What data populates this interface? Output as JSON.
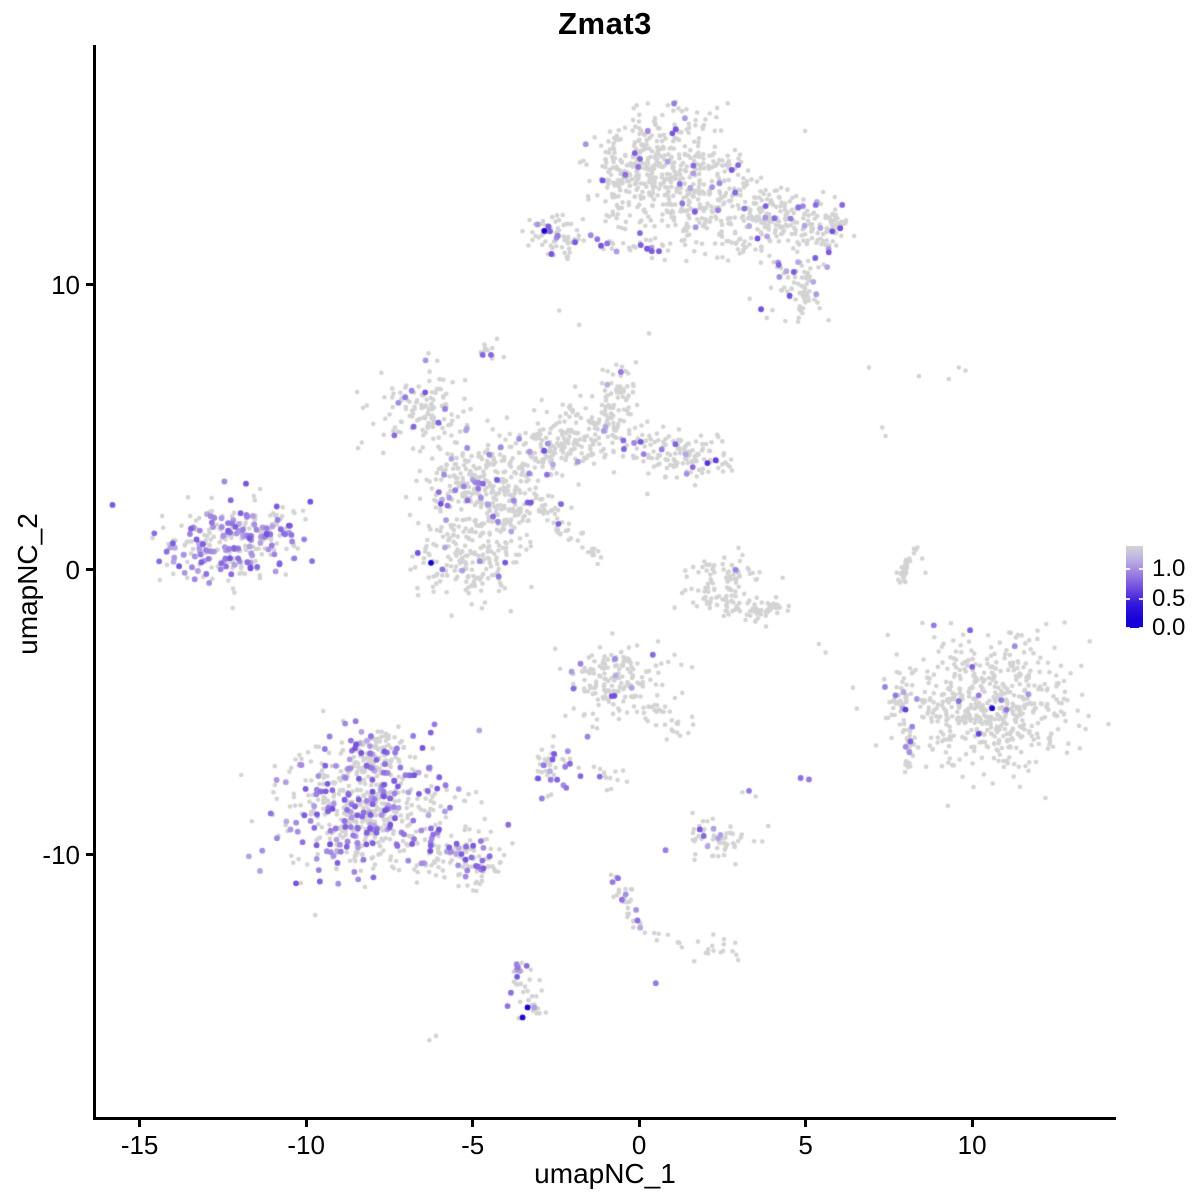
{
  "title": "Zmat3",
  "axes": {
    "x": {
      "label": "umapNC_1",
      "ticks": [
        "-15",
        "-10",
        "-5",
        "0",
        "5",
        "10"
      ],
      "tick_values": [
        -15,
        -10,
        -5,
        0,
        5,
        10
      ]
    },
    "y": {
      "label": "umapNC_2",
      "ticks": [
        "10",
        "0",
        "-10"
      ],
      "tick_values": [
        10,
        0,
        -10
      ]
    }
  },
  "legend": {
    "ticks": [
      "1.0",
      "0.5",
      "0.0"
    ],
    "tick_values": [
      1.0,
      0.5,
      0.0
    ],
    "vmax_display": 1.4
  },
  "colors": {
    "background": "#ffffff",
    "axis": "#000000",
    "ramp": [
      [
        0,
        "#d3d3d3"
      ],
      [
        0.2,
        "#c2b6e2"
      ],
      [
        0.45,
        "#9e83e2"
      ],
      [
        0.7,
        "#7450de"
      ],
      [
        1.0,
        "#3415dc"
      ],
      [
        1.25,
        "#1503d6"
      ]
    ]
  },
  "chart_data": {
    "type": "scatter",
    "title": "Zmat3",
    "xlabel": "umapNC_1",
    "ylabel": "umapNC_2",
    "xlim": [
      -16.34,
      14.29
    ],
    "ylim": [
      -19.23,
      18.42
    ],
    "grid": false,
    "legend_position": "right",
    "seed": 42,
    "point_radius_px": {
      "base": 2.3,
      "expressed": 2.9
    },
    "expressed_value_range": [
      0.25,
      0.7
    ],
    "clusters": [
      {
        "name": "top-main-upper",
        "kind": "blob",
        "cx": 0.7,
        "cy": 14.5,
        "sx": 1.0,
        "sy": 0.85,
        "n": 300,
        "frac": 0.04
      },
      {
        "name": "top-main-lower",
        "kind": "blob",
        "cx": 1.9,
        "cy": 12.7,
        "sx": 1.15,
        "sy": 0.8,
        "n": 260,
        "frac": 0.05
      },
      {
        "name": "top-left-lobe",
        "kind": "blob",
        "cx": -0.4,
        "cy": 13.4,
        "sx": 0.5,
        "sy": 0.9,
        "n": 90,
        "frac": 0.02
      },
      {
        "name": "top-right-wing",
        "kind": "blob",
        "cx": 4.4,
        "cy": 12.1,
        "sx": 0.9,
        "sy": 0.55,
        "n": 150,
        "frac": 0.1
      },
      {
        "name": "top-right-tip",
        "kind": "blob",
        "cx": 5.7,
        "cy": 11.9,
        "sx": 0.35,
        "sy": 0.4,
        "n": 50,
        "frac": 0.14
      },
      {
        "name": "top-hook-down",
        "kind": "blob",
        "cx": 4.7,
        "cy": 10.0,
        "sx": 0.45,
        "sy": 0.75,
        "n": 80,
        "frac": 0.12
      },
      {
        "name": "upper-left-small",
        "kind": "blob",
        "cx": -2.5,
        "cy": 11.7,
        "sx": 0.45,
        "sy": 0.4,
        "n": 65,
        "frac": 0.08
      },
      {
        "name": "tiny-mid-upper",
        "kind": "blob",
        "cx": -4.6,
        "cy": 7.6,
        "sx": 0.2,
        "sy": 0.28,
        "n": 12,
        "frac": 0
      },
      {
        "name": "central-topleft",
        "kind": "blob",
        "cx": -6.6,
        "cy": 5.6,
        "sx": 0.72,
        "sy": 0.68,
        "n": 130,
        "frac": 0.06
      },
      {
        "name": "central-main-knot",
        "kind": "blob",
        "cx": -4.5,
        "cy": 3.3,
        "sx": 1.0,
        "sy": 0.72,
        "n": 280,
        "frac": 0.09
      },
      {
        "name": "central-lower-lobe",
        "kind": "blob",
        "cx": -5.2,
        "cy": 0.5,
        "sx": 0.8,
        "sy": 0.85,
        "n": 210,
        "frac": 0.05
      },
      {
        "name": "far-left-cluster",
        "kind": "blob",
        "cx": -12.4,
        "cy": 0.9,
        "sx": 1.05,
        "sy": 0.7,
        "n": 260,
        "frac": 0.38
      },
      {
        "name": "mid-small-cluster",
        "kind": "blob",
        "cx": 2.5,
        "cy": -0.3,
        "sx": 0.6,
        "sy": 0.5,
        "n": 80,
        "frac": 0.02
      },
      {
        "name": "center-low-cluster",
        "kind": "blob",
        "cx": -0.6,
        "cy": -3.9,
        "sx": 0.78,
        "sy": 0.62,
        "n": 170,
        "frac": 0.045
      },
      {
        "name": "bottomleft-main",
        "kind": "blob",
        "cx": -8.2,
        "cy": -8.4,
        "sx": 1.28,
        "sy": 1.12,
        "n": 580,
        "frac": 0.3
      },
      {
        "name": "bottomleft-top",
        "kind": "blob",
        "cx": -8.0,
        "cy": -6.35,
        "sx": 0.55,
        "sy": 0.5,
        "n": 85,
        "frac": 0.28
      },
      {
        "name": "midleft-small",
        "kind": "blob",
        "cx": -2.6,
        "cy": -7.0,
        "sx": 0.36,
        "sy": 0.45,
        "n": 45,
        "frac": 0.33
      },
      {
        "name": "center-sparse",
        "kind": "blob",
        "cx": -0.7,
        "cy": -7.3,
        "sx": 0.3,
        "sy": 0.28,
        "n": 12,
        "frac": 0.15
      },
      {
        "name": "small-lower-mid",
        "kind": "blob",
        "cx": 2.4,
        "cy": -9.4,
        "sx": 0.52,
        "sy": 0.4,
        "n": 55,
        "frac": 0.1
      },
      {
        "name": "right-main",
        "kind": "blob",
        "cx": 10.4,
        "cy": -4.7,
        "sx": 1.3,
        "sy": 1.15,
        "n": 560,
        "frac": 0.012
      },
      {
        "name": "right-satellite",
        "kind": "blob",
        "cx": 7.8,
        "cy": -4.55,
        "sx": 0.28,
        "sy": 0.42,
        "n": 26,
        "frac": 0.12
      },
      {
        "name": "bottom-small-blob",
        "kind": "blob",
        "cx": 2.3,
        "cy": -13.25,
        "sx": 0.38,
        "sy": 0.22,
        "n": 16,
        "frac": 0
      },
      {
        "name": "band-chain",
        "kind": "line",
        "x1": -1.6,
        "y1": 11.55,
        "x2": 0.4,
        "y2": 11.25,
        "w": 0.1,
        "n": 22,
        "frac": 0.25
      },
      {
        "name": "central-arm-up",
        "kind": "line",
        "x1": -1.0,
        "y1": 4.7,
        "x2": -0.5,
        "y2": 6.9,
        "w": 0.3,
        "n": 90,
        "frac": 0.04
      },
      {
        "name": "central-bridge",
        "kind": "line",
        "x1": -3.3,
        "y1": 4.2,
        "x2": -1.2,
        "y2": 4.6,
        "w": 0.45,
        "n": 130,
        "frac": 0.04
      },
      {
        "name": "central-right-arm",
        "kind": "line",
        "x1": -0.5,
        "y1": 4.4,
        "x2": 2.3,
        "y2": 3.8,
        "w": 0.45,
        "n": 150,
        "frac": 0.05
      },
      {
        "name": "central-neck",
        "kind": "line",
        "x1": -4.4,
        "y1": 1.7,
        "x2": -3.7,
        "y2": 2.6,
        "w": 0.38,
        "n": 60,
        "frac": 0.1
      },
      {
        "name": "diagonal-streak",
        "kind": "line",
        "x1": -3.2,
        "y1": 2.4,
        "x2": -1.1,
        "y2": 0.35,
        "w": 0.13,
        "n": 50,
        "frac": 0.04
      },
      {
        "name": "central-sparse-top",
        "kind": "line",
        "x1": -2.4,
        "y1": 5.0,
        "x2": -1.3,
        "y2": 6.3,
        "w": 0.4,
        "n": 25,
        "frac": 0.04
      },
      {
        "name": "mid-small-arc",
        "kind": "arc",
        "x1": 1.9,
        "y1": -0.9,
        "cx": 3.0,
        "cy": -1.9,
        "x2": 4.4,
        "y2": -1.2,
        "w": 0.22,
        "n": 65,
        "frac": 0
      },
      {
        "name": "right-thin-arc",
        "kind": "arc",
        "x1": 8.25,
        "y1": 0.85,
        "cx": 7.9,
        "cy": 0.2,
        "x2": 7.85,
        "y2": -0.5,
        "w": 0.09,
        "n": 35,
        "frac": 0
      },
      {
        "name": "centerlow-tail",
        "kind": "line",
        "x1": 0.4,
        "y1": -4.9,
        "x2": 1.5,
        "y2": -5.7,
        "w": 0.22,
        "n": 25,
        "frac": 0
      },
      {
        "name": "bottomleft-arm",
        "kind": "line",
        "x1": -6.4,
        "y1": -9.6,
        "x2": -4.5,
        "y2": -10.45,
        "w": 0.45,
        "n": 120,
        "frac": 0.22
      },
      {
        "name": "streak-down",
        "kind": "line",
        "x1": -0.75,
        "y1": -10.8,
        "x2": -0.05,
        "y2": -12.5,
        "w": 0.14,
        "n": 32,
        "frac": 0.1
      },
      {
        "name": "chain-right",
        "kind": "line",
        "x1": 0.1,
        "y1": -12.7,
        "x2": 1.5,
        "y2": -13.1,
        "w": 0.1,
        "n": 8,
        "frac": 0
      },
      {
        "name": "bottom-snake",
        "kind": "line",
        "x1": -3.6,
        "y1": -13.9,
        "x2": -3.25,
        "y2": -15.5,
        "w": 0.2,
        "n": 38,
        "frac": 0.22
      },
      {
        "name": "right-streak",
        "kind": "line",
        "x1": 8.0,
        "y1": -5.6,
        "x2": 8.15,
        "y2": -7.0,
        "w": 0.1,
        "n": 20,
        "frac": 0.1
      },
      {
        "name": "farleft-tail",
        "kind": "line",
        "x1": -10.9,
        "y1": 1.7,
        "x2": -9.95,
        "y2": 2.25,
        "w": 0.18,
        "n": 12,
        "frac": 0.25
      },
      {
        "name": "farleft-dense-band",
        "kind": "line",
        "x1": -11.9,
        "y1": 1.2,
        "x2": -10.65,
        "y2": 1.4,
        "w": 0.16,
        "n": 30,
        "frac": 0.75
      }
    ],
    "singles_grey": [
      [
        6.9,
        7.1
      ],
      [
        8.4,
        6.8
      ],
      [
        9.3,
        6.7
      ],
      [
        9.6,
        7.1
      ],
      [
        9.8,
        7.0
      ],
      [
        7.3,
        5.0
      ],
      [
        7.4,
        4.7
      ],
      [
        -2.4,
        9.1
      ],
      [
        -1.8,
        8.6
      ],
      [
        0.3,
        8.3
      ],
      [
        5.4,
        -2.6
      ],
      [
        5.6,
        -2.9
      ],
      [
        3.5,
        -7.95
      ],
      [
        3.1,
        -7.8
      ],
      [
        -1.4,
        -5.5
      ],
      [
        -6.1,
        -16.35
      ],
      [
        -6.3,
        -16.5
      ],
      [
        8.5,
        0.4
      ],
      [
        8.6,
        -0.1
      ]
    ],
    "special_points": [
      [
        -2.85,
        11.9,
        1.3
      ],
      [
        -6.25,
        0.25,
        1.3
      ],
      [
        10.6,
        -4.85,
        1.2
      ],
      [
        -3.35,
        -15.35,
        1.25
      ],
      [
        -3.5,
        -15.7,
        1.15
      ],
      [
        2.05,
        3.75,
        0.85
      ],
      [
        2.3,
        3.85,
        0.8
      ],
      [
        0.5,
        -14.5,
        0.5
      ],
      [
        4.85,
        -7.3,
        0.55
      ],
      [
        5.1,
        -7.35,
        0.5
      ],
      [
        3.3,
        -7.75,
        0.5
      ],
      [
        2.9,
        0.0,
        0.45
      ],
      [
        10.2,
        -5.75,
        0.75
      ],
      [
        10.0,
        -3.4,
        0.6
      ],
      [
        9.6,
        -4.6,
        0.55
      ],
      [
        10.2,
        -4.4,
        0.5
      ],
      [
        7.7,
        -4.4,
        0.5
      ],
      [
        8.0,
        -4.9,
        0.8
      ],
      [
        8.2,
        -5.5,
        0.45
      ],
      [
        -4.7,
        7.55,
        0.6
      ],
      [
        -4.45,
        7.55,
        0.6
      ],
      [
        -0.55,
        6.95,
        0.5
      ],
      [
        -1.55,
        -5.85,
        0.45
      ],
      [
        -3.65,
        -13.95,
        0.5
      ],
      [
        -0.8,
        -10.95,
        0.5
      ],
      [
        -0.05,
        -12.3,
        0.55
      ]
    ]
  }
}
